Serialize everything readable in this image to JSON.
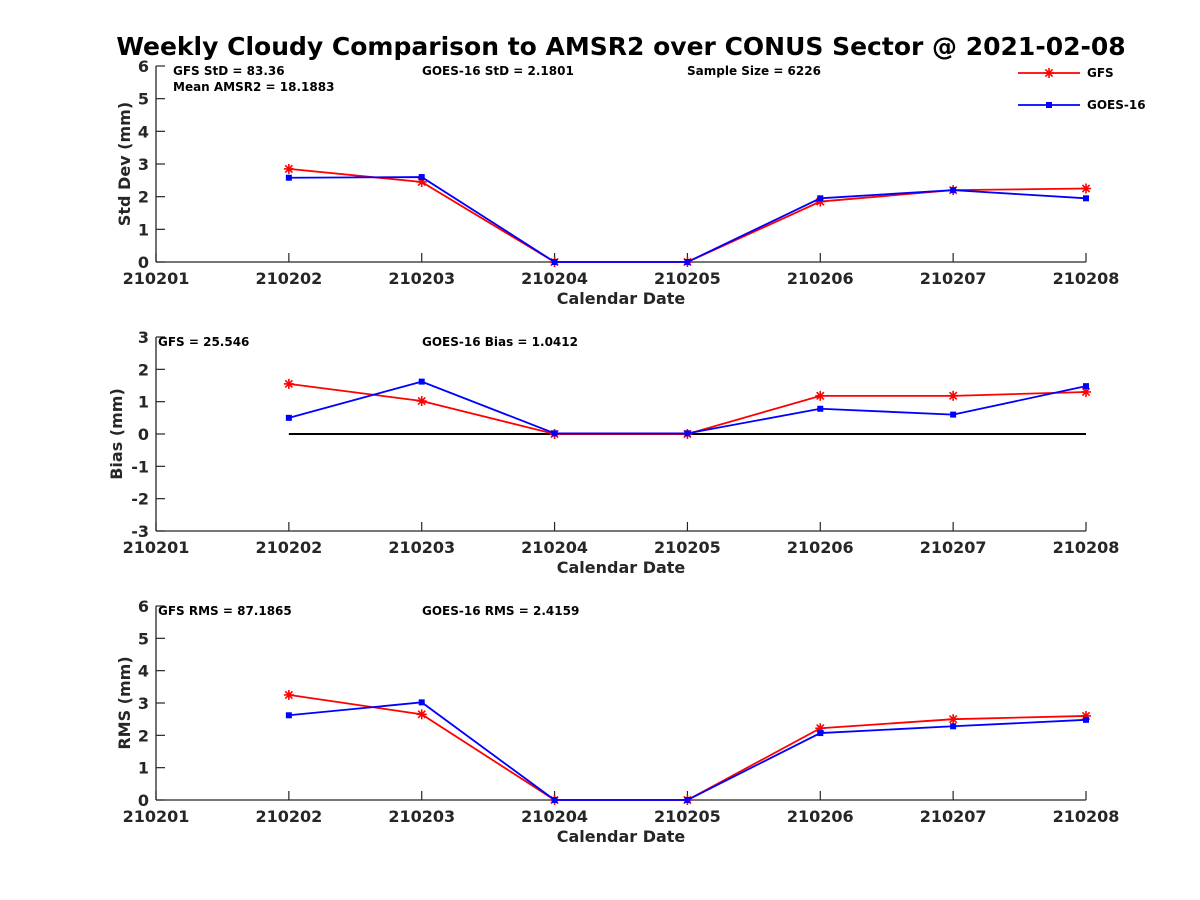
{
  "figure": {
    "title": "Weekly Cloudy Comparison to AMSR2 over CONUS Sector @ 2021-02-08"
  },
  "legend": {
    "placement": "top-right",
    "entries": [
      {
        "name": "GFS",
        "color": "#ff0000",
        "marker": "asterisk"
      },
      {
        "name": "GOES-16",
        "color": "#0000ff",
        "marker": "square"
      }
    ]
  },
  "chart_data": [
    {
      "type": "line",
      "xlabel": "Calendar Date",
      "ylabel": "Std Dev (mm)",
      "categories": [
        "210201",
        "210202",
        "210203",
        "210204",
        "210205",
        "210206",
        "210207",
        "210208"
      ],
      "ylim": [
        0,
        6
      ],
      "yticks": [
        0,
        1,
        2,
        3,
        4,
        5,
        6
      ],
      "grid": false,
      "zero_line": false,
      "annotations": {
        "gfs": "GFS StD = 83.36",
        "goes": "GOES-16 StD = 2.1801",
        "sample": "Sample Size = 6226",
        "mean": "Mean AMSR2 = 18.1883"
      },
      "series": [
        {
          "name": "GFS",
          "x": [
            "210202",
            "210203",
            "210204",
            "210205",
            "210206",
            "210207",
            "210208"
          ],
          "values": [
            2.85,
            2.45,
            0,
            0,
            1.85,
            2.2,
            2.25
          ]
        },
        {
          "name": "GOES-16",
          "x": [
            "210202",
            "210203",
            "210204",
            "210205",
            "210206",
            "210207",
            "210208"
          ],
          "values": [
            2.58,
            2.6,
            0,
            0,
            1.95,
            2.2,
            1.95
          ]
        }
      ]
    },
    {
      "type": "line",
      "xlabel": "Calendar Date",
      "ylabel": "Bias (mm)",
      "categories": [
        "210201",
        "210202",
        "210203",
        "210204",
        "210205",
        "210206",
        "210207",
        "210208"
      ],
      "ylim": [
        -3,
        3
      ],
      "yticks": [
        -3,
        -2,
        -1,
        0,
        1,
        2,
        3
      ],
      "grid": false,
      "zero_line": true,
      "annotations": {
        "gfs": "GFS = 25.546",
        "goes": "GOES-16 Bias  = 1.0412"
      },
      "series": [
        {
          "name": "GFS",
          "x": [
            "210202",
            "210203",
            "210204",
            "210205",
            "210206",
            "210207",
            "210208"
          ],
          "values": [
            1.55,
            1.02,
            0,
            0,
            1.18,
            1.18,
            1.3
          ]
        },
        {
          "name": "GOES-16",
          "x": [
            "210202",
            "210203",
            "210204",
            "210205",
            "210206",
            "210207",
            "210208"
          ],
          "values": [
            0.5,
            1.62,
            0.02,
            0.02,
            0.78,
            0.6,
            1.48
          ]
        }
      ]
    },
    {
      "type": "line",
      "xlabel": "Calendar Date",
      "ylabel": "RMS (mm)",
      "categories": [
        "210201",
        "210202",
        "210203",
        "210204",
        "210205",
        "210206",
        "210207",
        "210208"
      ],
      "ylim": [
        0,
        6
      ],
      "yticks": [
        0,
        1,
        2,
        3,
        4,
        5,
        6
      ],
      "grid": false,
      "zero_line": false,
      "annotations": {
        "gfs": "GFS RMS = 87.1865",
        "goes": "GOES-16 RMS = 2.4159"
      },
      "series": [
        {
          "name": "GFS",
          "x": [
            "210202",
            "210203",
            "210204",
            "210205",
            "210206",
            "210207",
            "210208"
          ],
          "values": [
            3.25,
            2.65,
            0,
            0,
            2.22,
            2.5,
            2.6
          ]
        },
        {
          "name": "GOES-16",
          "x": [
            "210202",
            "210203",
            "210204",
            "210205",
            "210206",
            "210207",
            "210208"
          ],
          "values": [
            2.62,
            3.02,
            0,
            0,
            2.07,
            2.28,
            2.48
          ]
        }
      ]
    }
  ]
}
